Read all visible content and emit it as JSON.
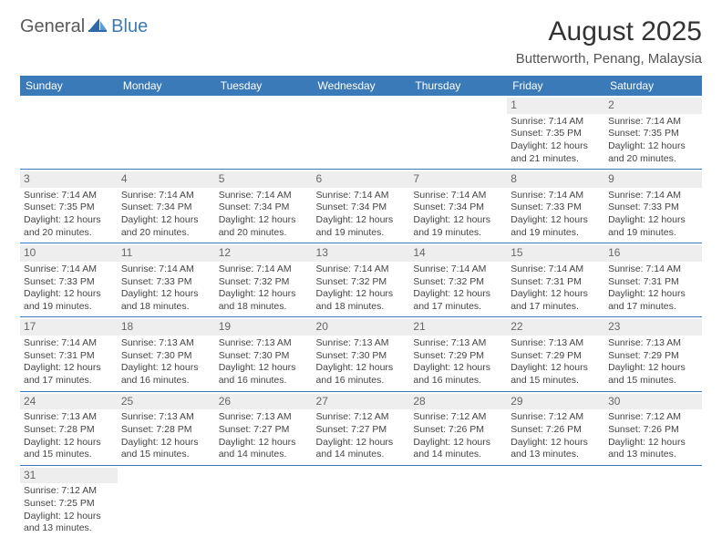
{
  "logo": {
    "part1": "General",
    "part2": "Blue"
  },
  "title": "August 2025",
  "location": "Butterworth, Penang, Malaysia",
  "header_color": "#3b7ab8",
  "daynum_bg": "#eeeeee",
  "weekdays": [
    "Sunday",
    "Monday",
    "Tuesday",
    "Wednesday",
    "Thursday",
    "Friday",
    "Saturday"
  ],
  "weeks": [
    [
      null,
      null,
      null,
      null,
      null,
      {
        "n": "1",
        "sr": "Sunrise: 7:14 AM",
        "ss": "Sunset: 7:35 PM",
        "dl1": "Daylight: 12 hours",
        "dl2": "and 21 minutes."
      },
      {
        "n": "2",
        "sr": "Sunrise: 7:14 AM",
        "ss": "Sunset: 7:35 PM",
        "dl1": "Daylight: 12 hours",
        "dl2": "and 20 minutes."
      }
    ],
    [
      {
        "n": "3",
        "sr": "Sunrise: 7:14 AM",
        "ss": "Sunset: 7:35 PM",
        "dl1": "Daylight: 12 hours",
        "dl2": "and 20 minutes."
      },
      {
        "n": "4",
        "sr": "Sunrise: 7:14 AM",
        "ss": "Sunset: 7:34 PM",
        "dl1": "Daylight: 12 hours",
        "dl2": "and 20 minutes."
      },
      {
        "n": "5",
        "sr": "Sunrise: 7:14 AM",
        "ss": "Sunset: 7:34 PM",
        "dl1": "Daylight: 12 hours",
        "dl2": "and 20 minutes."
      },
      {
        "n": "6",
        "sr": "Sunrise: 7:14 AM",
        "ss": "Sunset: 7:34 PM",
        "dl1": "Daylight: 12 hours",
        "dl2": "and 19 minutes."
      },
      {
        "n": "7",
        "sr": "Sunrise: 7:14 AM",
        "ss": "Sunset: 7:34 PM",
        "dl1": "Daylight: 12 hours",
        "dl2": "and 19 minutes."
      },
      {
        "n": "8",
        "sr": "Sunrise: 7:14 AM",
        "ss": "Sunset: 7:33 PM",
        "dl1": "Daylight: 12 hours",
        "dl2": "and 19 minutes."
      },
      {
        "n": "9",
        "sr": "Sunrise: 7:14 AM",
        "ss": "Sunset: 7:33 PM",
        "dl1": "Daylight: 12 hours",
        "dl2": "and 19 minutes."
      }
    ],
    [
      {
        "n": "10",
        "sr": "Sunrise: 7:14 AM",
        "ss": "Sunset: 7:33 PM",
        "dl1": "Daylight: 12 hours",
        "dl2": "and 19 minutes."
      },
      {
        "n": "11",
        "sr": "Sunrise: 7:14 AM",
        "ss": "Sunset: 7:33 PM",
        "dl1": "Daylight: 12 hours",
        "dl2": "and 18 minutes."
      },
      {
        "n": "12",
        "sr": "Sunrise: 7:14 AM",
        "ss": "Sunset: 7:32 PM",
        "dl1": "Daylight: 12 hours",
        "dl2": "and 18 minutes."
      },
      {
        "n": "13",
        "sr": "Sunrise: 7:14 AM",
        "ss": "Sunset: 7:32 PM",
        "dl1": "Daylight: 12 hours",
        "dl2": "and 18 minutes."
      },
      {
        "n": "14",
        "sr": "Sunrise: 7:14 AM",
        "ss": "Sunset: 7:32 PM",
        "dl1": "Daylight: 12 hours",
        "dl2": "and 17 minutes."
      },
      {
        "n": "15",
        "sr": "Sunrise: 7:14 AM",
        "ss": "Sunset: 7:31 PM",
        "dl1": "Daylight: 12 hours",
        "dl2": "and 17 minutes."
      },
      {
        "n": "16",
        "sr": "Sunrise: 7:14 AM",
        "ss": "Sunset: 7:31 PM",
        "dl1": "Daylight: 12 hours",
        "dl2": "and 17 minutes."
      }
    ],
    [
      {
        "n": "17",
        "sr": "Sunrise: 7:14 AM",
        "ss": "Sunset: 7:31 PM",
        "dl1": "Daylight: 12 hours",
        "dl2": "and 17 minutes."
      },
      {
        "n": "18",
        "sr": "Sunrise: 7:13 AM",
        "ss": "Sunset: 7:30 PM",
        "dl1": "Daylight: 12 hours",
        "dl2": "and 16 minutes."
      },
      {
        "n": "19",
        "sr": "Sunrise: 7:13 AM",
        "ss": "Sunset: 7:30 PM",
        "dl1": "Daylight: 12 hours",
        "dl2": "and 16 minutes."
      },
      {
        "n": "20",
        "sr": "Sunrise: 7:13 AM",
        "ss": "Sunset: 7:30 PM",
        "dl1": "Daylight: 12 hours",
        "dl2": "and 16 minutes."
      },
      {
        "n": "21",
        "sr": "Sunrise: 7:13 AM",
        "ss": "Sunset: 7:29 PM",
        "dl1": "Daylight: 12 hours",
        "dl2": "and 16 minutes."
      },
      {
        "n": "22",
        "sr": "Sunrise: 7:13 AM",
        "ss": "Sunset: 7:29 PM",
        "dl1": "Daylight: 12 hours",
        "dl2": "and 15 minutes."
      },
      {
        "n": "23",
        "sr": "Sunrise: 7:13 AM",
        "ss": "Sunset: 7:29 PM",
        "dl1": "Daylight: 12 hours",
        "dl2": "and 15 minutes."
      }
    ],
    [
      {
        "n": "24",
        "sr": "Sunrise: 7:13 AM",
        "ss": "Sunset: 7:28 PM",
        "dl1": "Daylight: 12 hours",
        "dl2": "and 15 minutes."
      },
      {
        "n": "25",
        "sr": "Sunrise: 7:13 AM",
        "ss": "Sunset: 7:28 PM",
        "dl1": "Daylight: 12 hours",
        "dl2": "and 15 minutes."
      },
      {
        "n": "26",
        "sr": "Sunrise: 7:13 AM",
        "ss": "Sunset: 7:27 PM",
        "dl1": "Daylight: 12 hours",
        "dl2": "and 14 minutes."
      },
      {
        "n": "27",
        "sr": "Sunrise: 7:12 AM",
        "ss": "Sunset: 7:27 PM",
        "dl1": "Daylight: 12 hours",
        "dl2": "and 14 minutes."
      },
      {
        "n": "28",
        "sr": "Sunrise: 7:12 AM",
        "ss": "Sunset: 7:26 PM",
        "dl1": "Daylight: 12 hours",
        "dl2": "and 14 minutes."
      },
      {
        "n": "29",
        "sr": "Sunrise: 7:12 AM",
        "ss": "Sunset: 7:26 PM",
        "dl1": "Daylight: 12 hours",
        "dl2": "and 13 minutes."
      },
      {
        "n": "30",
        "sr": "Sunrise: 7:12 AM",
        "ss": "Sunset: 7:26 PM",
        "dl1": "Daylight: 12 hours",
        "dl2": "and 13 minutes."
      }
    ],
    [
      {
        "n": "31",
        "sr": "Sunrise: 7:12 AM",
        "ss": "Sunset: 7:25 PM",
        "dl1": "Daylight: 12 hours",
        "dl2": "and 13 minutes."
      },
      null,
      null,
      null,
      null,
      null,
      null
    ]
  ]
}
